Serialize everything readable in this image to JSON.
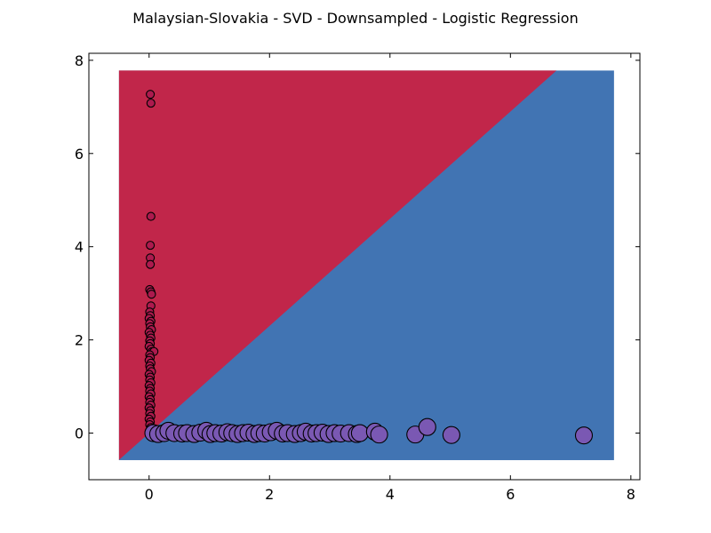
{
  "chart_data": {
    "type": "scatter",
    "title": "Malaysian-Slovakia - SVD - Downsampled - Logistic Regression",
    "xlabel": "",
    "ylabel": "",
    "xlim": [
      -1,
      8.15
    ],
    "ylim": [
      -1,
      8.15
    ],
    "xticks": [
      0,
      2,
      4,
      6,
      8
    ],
    "yticks": [
      0,
      2,
      4,
      6,
      8
    ],
    "grid": false,
    "background_regions": {
      "extent": {
        "x": [
          -0.5,
          7.72
        ],
        "y": [
          -0.58,
          7.78
        ]
      },
      "boundary_line": {
        "slope": 1.15,
        "intercept": 0.0
      },
      "above_color": "#c1264a",
      "below_color": "#4174b3"
    },
    "series": [
      {
        "color": "#ad1a4e",
        "marker_size": "small",
        "points": [
          [
            0.02,
            7.27
          ],
          [
            0.03,
            7.08
          ],
          [
            0.03,
            4.65
          ],
          [
            0.02,
            4.03
          ],
          [
            0.02,
            3.76
          ],
          [
            0.02,
            3.62
          ],
          [
            0.01,
            3.08
          ],
          [
            0.03,
            3.03
          ],
          [
            0.04,
            2.98
          ],
          [
            0.03,
            2.73
          ],
          [
            0.01,
            2.6
          ],
          [
            0.02,
            2.52
          ],
          [
            0.0,
            2.46
          ],
          [
            0.03,
            2.4
          ],
          [
            0.01,
            2.35
          ],
          [
            0.02,
            2.28
          ],
          [
            0.04,
            2.22
          ],
          [
            0.0,
            2.16
          ],
          [
            0.02,
            2.1
          ],
          [
            0.03,
            2.04
          ],
          [
            0.01,
            1.98
          ],
          [
            0.02,
            1.92
          ],
          [
            0.0,
            1.86
          ],
          [
            0.03,
            1.8
          ],
          [
            0.05,
            1.75
          ],
          [
            0.08,
            1.75
          ],
          [
            0.01,
            1.68
          ],
          [
            0.02,
            1.62
          ],
          [
            0.0,
            1.56
          ],
          [
            0.03,
            1.5
          ],
          [
            0.01,
            1.44
          ],
          [
            0.02,
            1.38
          ],
          [
            0.04,
            1.32
          ],
          [
            0.0,
            1.26
          ],
          [
            0.02,
            1.2
          ],
          [
            0.01,
            1.14
          ],
          [
            0.03,
            1.08
          ],
          [
            0.0,
            1.02
          ],
          [
            0.02,
            0.96
          ],
          [
            0.01,
            0.9
          ],
          [
            0.03,
            0.84
          ],
          [
            0.0,
            0.78
          ],
          [
            0.02,
            0.72
          ],
          [
            0.01,
            0.66
          ],
          [
            0.03,
            0.6
          ],
          [
            0.0,
            0.54
          ],
          [
            0.02,
            0.48
          ],
          [
            0.01,
            0.42
          ],
          [
            0.03,
            0.36
          ],
          [
            0.0,
            0.3
          ],
          [
            0.02,
            0.24
          ],
          [
            0.01,
            0.18
          ],
          [
            0.03,
            0.12
          ],
          [
            0.02,
            0.06
          ]
        ]
      },
      {
        "color": "#7a58b3",
        "marker_size": "large",
        "points": [
          [
            0.07,
            0.0
          ],
          [
            0.15,
            -0.02
          ],
          [
            0.25,
            0.0
          ],
          [
            0.32,
            0.05
          ],
          [
            0.42,
            0.0
          ],
          [
            0.55,
            -0.01
          ],
          [
            0.63,
            0.0
          ],
          [
            0.75,
            -0.02
          ],
          [
            0.85,
            0.01
          ],
          [
            0.95,
            0.05
          ],
          [
            1.02,
            -0.02
          ],
          [
            1.1,
            0.0
          ],
          [
            1.2,
            -0.01
          ],
          [
            1.3,
            0.02
          ],
          [
            1.38,
            0.0
          ],
          [
            1.47,
            -0.02
          ],
          [
            1.56,
            0.0
          ],
          [
            1.65,
            0.01
          ],
          [
            1.75,
            -0.02
          ],
          [
            1.83,
            0.0
          ],
          [
            1.92,
            -0.01
          ],
          [
            2.02,
            0.02
          ],
          [
            2.12,
            0.05
          ],
          [
            2.22,
            -0.01
          ],
          [
            2.3,
            0.0
          ],
          [
            2.42,
            -0.02
          ],
          [
            2.52,
            0.0
          ],
          [
            2.6,
            0.03
          ],
          [
            2.7,
            -0.01
          ],
          [
            2.78,
            0.0
          ],
          [
            2.88,
            0.01
          ],
          [
            2.98,
            -0.02
          ],
          [
            3.08,
            0.0
          ],
          [
            3.18,
            -0.01
          ],
          [
            3.32,
            0.0
          ],
          [
            3.45,
            -0.02
          ],
          [
            3.5,
            0.0
          ],
          [
            3.75,
            0.03
          ],
          [
            3.82,
            -0.03
          ],
          [
            4.42,
            -0.03
          ],
          [
            4.62,
            0.13
          ],
          [
            5.02,
            -0.04
          ],
          [
            7.22,
            -0.05
          ]
        ]
      }
    ]
  }
}
